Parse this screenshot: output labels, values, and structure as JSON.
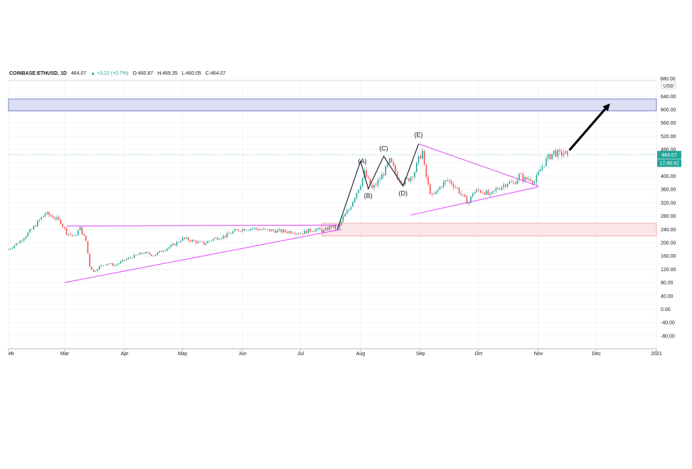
{
  "header": {
    "symbol": "COINBASE:ETHUSD, 1D",
    "last": "464.07",
    "change": "▲ +3.22 (+0.7%)",
    "open": "O:460.87",
    "high": "H:469.35",
    "low": "L:460.05",
    "close": "C:464.07"
  },
  "price_scale": {
    "currency": "USD",
    "top_label": "680.00",
    "last_price_tag": "464.07",
    "countdown_tag": "17:46:42",
    "colors": {
      "up": "#26a69a",
      "down": "#ef5350",
      "tag": "#26a69a"
    }
  },
  "chart_data": {
    "type": "candlestick",
    "symbol": "COINBASE:ETHUSD",
    "interval": "1D",
    "y_ticks": [
      "640.00",
      "600.00",
      "560.00",
      "520.00",
      "480.00",
      "440.00",
      "400.00",
      "360.00",
      "320.00",
      "280.00",
      "240.00",
      "200.00",
      "160.00",
      "120.00",
      "80.00",
      "40.00",
      "0.00",
      "-40.00",
      "-80.00"
    ],
    "ylim": [
      -110,
      690
    ],
    "x_ticks": [
      "eb",
      "Mar",
      "Apr",
      "May",
      "Jun",
      "Jul",
      "Aug",
      "Sep",
      "Oct",
      "Nov",
      "Dec",
      "2021"
    ],
    "x_tick_days": [
      0,
      29,
      60,
      90,
      121,
      151,
      182,
      213,
      243,
      274,
      304,
      335
    ],
    "xlim": [
      0,
      335
    ],
    "close_anchors": [
      [
        0,
        180
      ],
      [
        6,
        205
      ],
      [
        12,
        240
      ],
      [
        16,
        268
      ],
      [
        19,
        288
      ],
      [
        23,
        278
      ],
      [
        27,
        262
      ],
      [
        30,
        230
      ],
      [
        34,
        218
      ],
      [
        37,
        243
      ],
      [
        40,
        205
      ],
      [
        42,
        130
      ],
      [
        44,
        112
      ],
      [
        47,
        128
      ],
      [
        51,
        138
      ],
      [
        55,
        132
      ],
      [
        60,
        148
      ],
      [
        65,
        160
      ],
      [
        70,
        170
      ],
      [
        75,
        162
      ],
      [
        80,
        178
      ],
      [
        85,
        192
      ],
      [
        90,
        213
      ],
      [
        96,
        204
      ],
      [
        101,
        197
      ],
      [
        106,
        212
      ],
      [
        112,
        220
      ],
      [
        116,
        233
      ],
      [
        120,
        240
      ],
      [
        126,
        243
      ],
      [
        131,
        239
      ],
      [
        137,
        236
      ],
      [
        142,
        234
      ],
      [
        147,
        233
      ],
      [
        151,
        228
      ],
      [
        155,
        236
      ],
      [
        159,
        240
      ],
      [
        163,
        235
      ],
      [
        167,
        250
      ],
      [
        170,
        240
      ],
      [
        173,
        275
      ],
      [
        176,
        300
      ],
      [
        179,
        340
      ],
      [
        182,
        378
      ],
      [
        184,
        410
      ],
      [
        186,
        385
      ],
      [
        188,
        362
      ],
      [
        190,
        375
      ],
      [
        192,
        392
      ],
      [
        195,
        420
      ],
      [
        197,
        445
      ],
      [
        199,
        425
      ],
      [
        201,
        398
      ],
      [
        204,
        382
      ],
      [
        207,
        392
      ],
      [
        210,
        415
      ],
      [
        212,
        450
      ],
      [
        214,
        475
      ],
      [
        215,
        425
      ],
      [
        217,
        370
      ],
      [
        219,
        338
      ],
      [
        221,
        350
      ],
      [
        224,
        375
      ],
      [
        227,
        388
      ],
      [
        229,
        380
      ],
      [
        232,
        362
      ],
      [
        234,
        345
      ],
      [
        236,
        330
      ],
      [
        238,
        320
      ],
      [
        240,
        350
      ],
      [
        243,
        357
      ],
      [
        246,
        353
      ],
      [
        249,
        340
      ],
      [
        252,
        360
      ],
      [
        255,
        370
      ],
      [
        258,
        382
      ],
      [
        261,
        377
      ],
      [
        264,
        402
      ],
      [
        267,
        390
      ],
      [
        270,
        393
      ],
      [
        272,
        382
      ],
      [
        275,
        420
      ],
      [
        277,
        440
      ],
      [
        279,
        455
      ],
      [
        282,
        472
      ],
      [
        285,
        465
      ],
      [
        287,
        470
      ],
      [
        289,
        464
      ]
    ],
    "annotations": {
      "wave_labels": [
        {
          "text": "(A)",
          "day": 183,
          "price": 438
        },
        {
          "text": "(B)",
          "day": 186,
          "price": 335
        },
        {
          "text": "(C)",
          "day": 194,
          "price": 477
        },
        {
          "text": "(D)",
          "day": 204,
          "price": 342
        },
        {
          "text": "(E)",
          "day": 212,
          "price": 518
        }
      ],
      "wave_path": [
        [
          170,
          240
        ],
        [
          182,
          445
        ],
        [
          186,
          362
        ],
        [
          194,
          460
        ],
        [
          204,
          370
        ],
        [
          212,
          497
        ]
      ],
      "trendlines": [
        [
          [
            29,
            80
          ],
          [
            172,
            240
          ]
        ],
        [
          [
            30,
            250
          ],
          [
            172,
            253
          ]
        ],
        [
          [
            212,
            497
          ],
          [
            274,
            370
          ]
        ],
        [
          [
            208,
            283
          ],
          [
            274,
            368
          ]
        ]
      ],
      "zones": [
        {
          "name": "resistance",
          "from": 596,
          "to": 632,
          "color": "#c5cae9"
        },
        {
          "name": "support",
          "from": 220,
          "to": 258,
          "start_day": 162,
          "color": "#f8d7da"
        }
      ],
      "projection_arrow": {
        "from": [
          290,
          478
        ],
        "to": [
          310,
          612
        ]
      }
    }
  }
}
